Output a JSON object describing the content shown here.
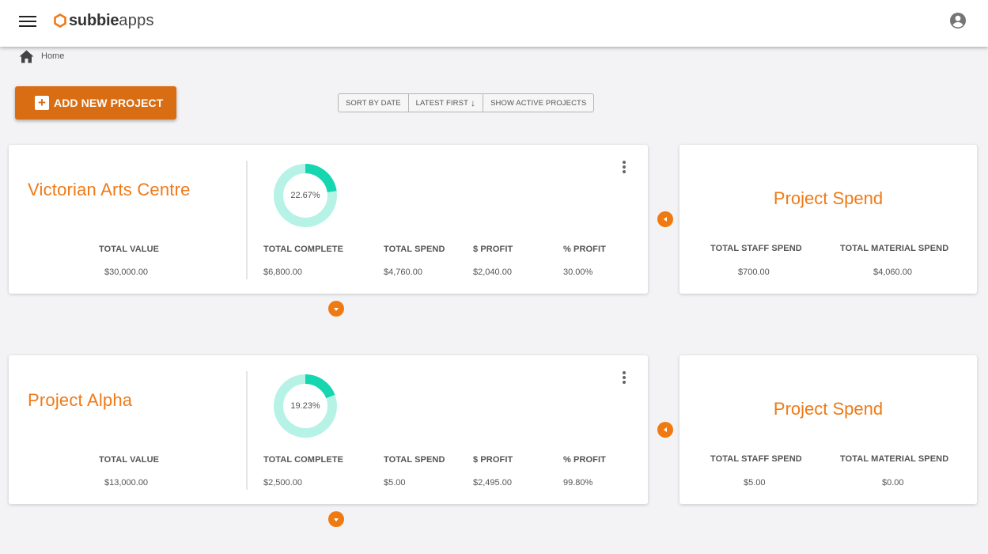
{
  "header": {
    "logo_bold": "subbie",
    "logo_thin": "apps",
    "colors": {
      "brand": "#ef7a17",
      "accent_dark": "#d86d13",
      "donut_fill": "#16d6b0",
      "donut_track": "#b6f3e6"
    }
  },
  "breadcrumb": {
    "home": "Home"
  },
  "toolbar": {
    "add_project": "ADD NEW PROJECT",
    "sort_by_date": "SORT BY DATE",
    "latest_first": "LATEST FIRST",
    "show_active": "SHOW ACTIVE PROJECTS"
  },
  "labels": {
    "total_value": "TOTAL VALUE",
    "total_complete": "TOTAL COMPLETE",
    "total_spend": "TOTAL SPEND",
    "profit_dollar": "$ PROFIT",
    "profit_percent": "% PROFIT",
    "spend_title": "Project Spend",
    "total_staff_spend": "TOTAL STAFF SPEND",
    "total_material_spend": "TOTAL MATERIAL SPEND"
  },
  "projects": [
    {
      "name": "Victorian Arts Centre",
      "complete_percent": 22.67,
      "complete_label": "22.67%",
      "total_value": "$30,000.00",
      "total_complete": "$6,800.00",
      "total_spend": "$4,760.00",
      "profit_dollar": "$2,040.00",
      "profit_percent": "30.00%",
      "staff_spend": "$700.00",
      "material_spend": "$4,060.00"
    },
    {
      "name": "Project Alpha",
      "complete_percent": 19.23,
      "complete_label": "19.23%",
      "total_value": "$13,000.00",
      "total_complete": "$2,500.00",
      "total_spend": "$5.00",
      "profit_dollar": "$2,495.00",
      "profit_percent": "99.80%",
      "staff_spend": "$5.00",
      "material_spend": "$0.00"
    }
  ]
}
